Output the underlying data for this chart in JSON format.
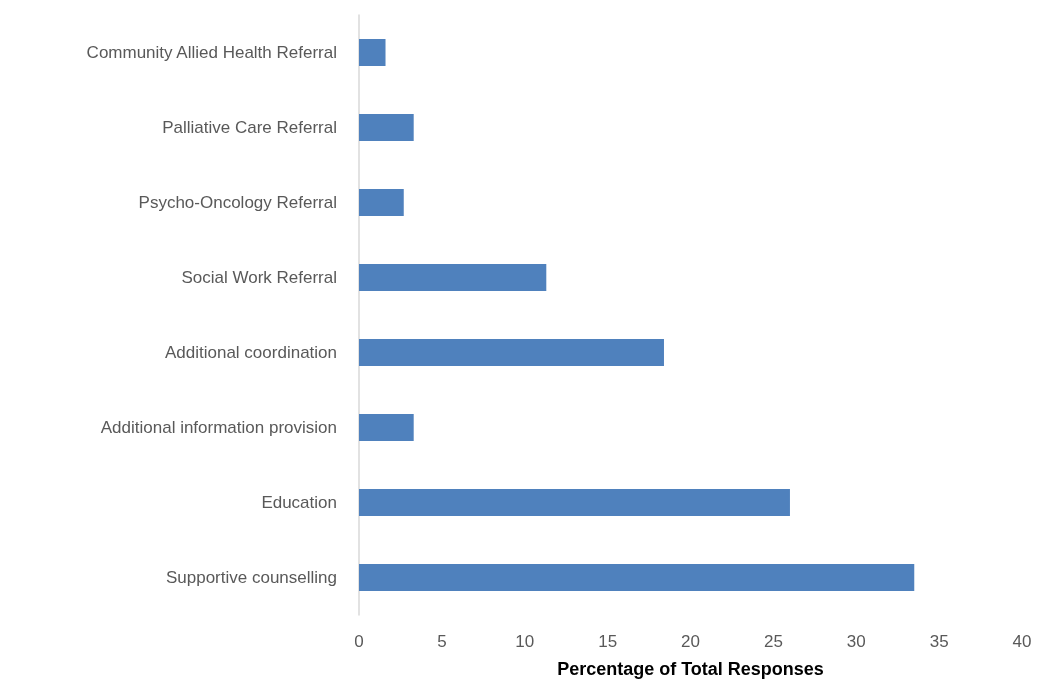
{
  "chart_data": {
    "type": "bar",
    "orientation": "horizontal",
    "xlabel": "Percentage of Total Responses",
    "categories": [
      "Community Allied Health Referral",
      "Palliative Care Referral",
      "Psycho-Oncology Referral",
      "Social Work Referral",
      "Additional coordination",
      "Additional information provision",
      "Education",
      "Supportive counselling"
    ],
    "values": [
      1.6,
      3.3,
      2.7,
      11.3,
      18.4,
      3.3,
      26.0,
      33.5
    ],
    "color": "#4f81bd",
    "xlim": [
      0,
      40
    ],
    "xticks": [
      0,
      5,
      10,
      15,
      20,
      25,
      30,
      35,
      40
    ],
    "grid": false
  }
}
